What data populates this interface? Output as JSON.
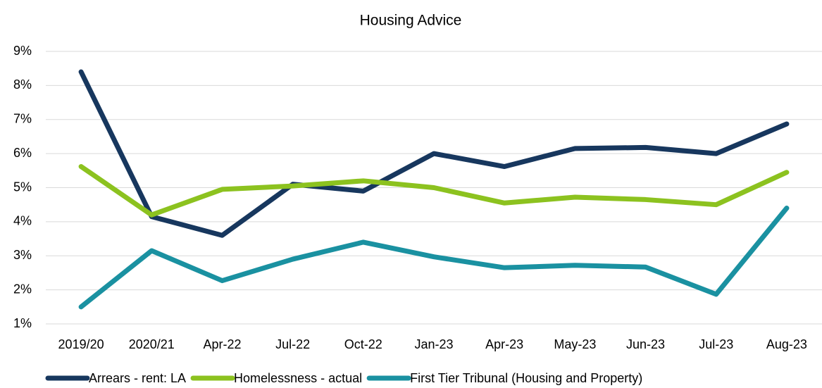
{
  "chart_data": {
    "type": "line",
    "title": "Housing Advice",
    "categories": [
      "2019/20",
      "2020/21",
      "Apr-22",
      "Jul-22",
      "Oct-22",
      "Jan-23",
      "Apr-23",
      "May-23",
      "Jun-23",
      "Jul-23",
      "Aug-23"
    ],
    "series": [
      {
        "name": "Arrears - rent: LA",
        "color": "#17375e",
        "values": [
          8.4,
          4.15,
          3.6,
          5.1,
          4.9,
          6.0,
          5.62,
          6.15,
          6.18,
          6.0,
          6.87
        ]
      },
      {
        "name": "Homelessness - actual",
        "color": "#8cc21f",
        "values": [
          5.62,
          4.2,
          4.95,
          5.05,
          5.2,
          5.0,
          4.55,
          4.72,
          4.65,
          4.5,
          5.45
        ]
      },
      {
        "name": "First Tier Tribunal (Housing and Property)",
        "color": "#1a91a1",
        "values": [
          1.5,
          3.15,
          2.27,
          2.9,
          3.4,
          2.97,
          2.65,
          2.72,
          2.67,
          1.87,
          4.4
        ]
      }
    ],
    "ylim": [
      1,
      9
    ],
    "yticks": [
      {
        "value": 1,
        "label": "1%"
      },
      {
        "value": 2,
        "label": "2%"
      },
      {
        "value": 3,
        "label": "3%"
      },
      {
        "value": 4,
        "label": "4%"
      },
      {
        "value": 5,
        "label": "5%"
      },
      {
        "value": 6,
        "label": "6%"
      },
      {
        "value": 7,
        "label": "7%"
      },
      {
        "value": 8,
        "label": "8%"
      },
      {
        "value": 9,
        "label": "9%"
      }
    ],
    "grid": true,
    "legend": "bottom"
  }
}
